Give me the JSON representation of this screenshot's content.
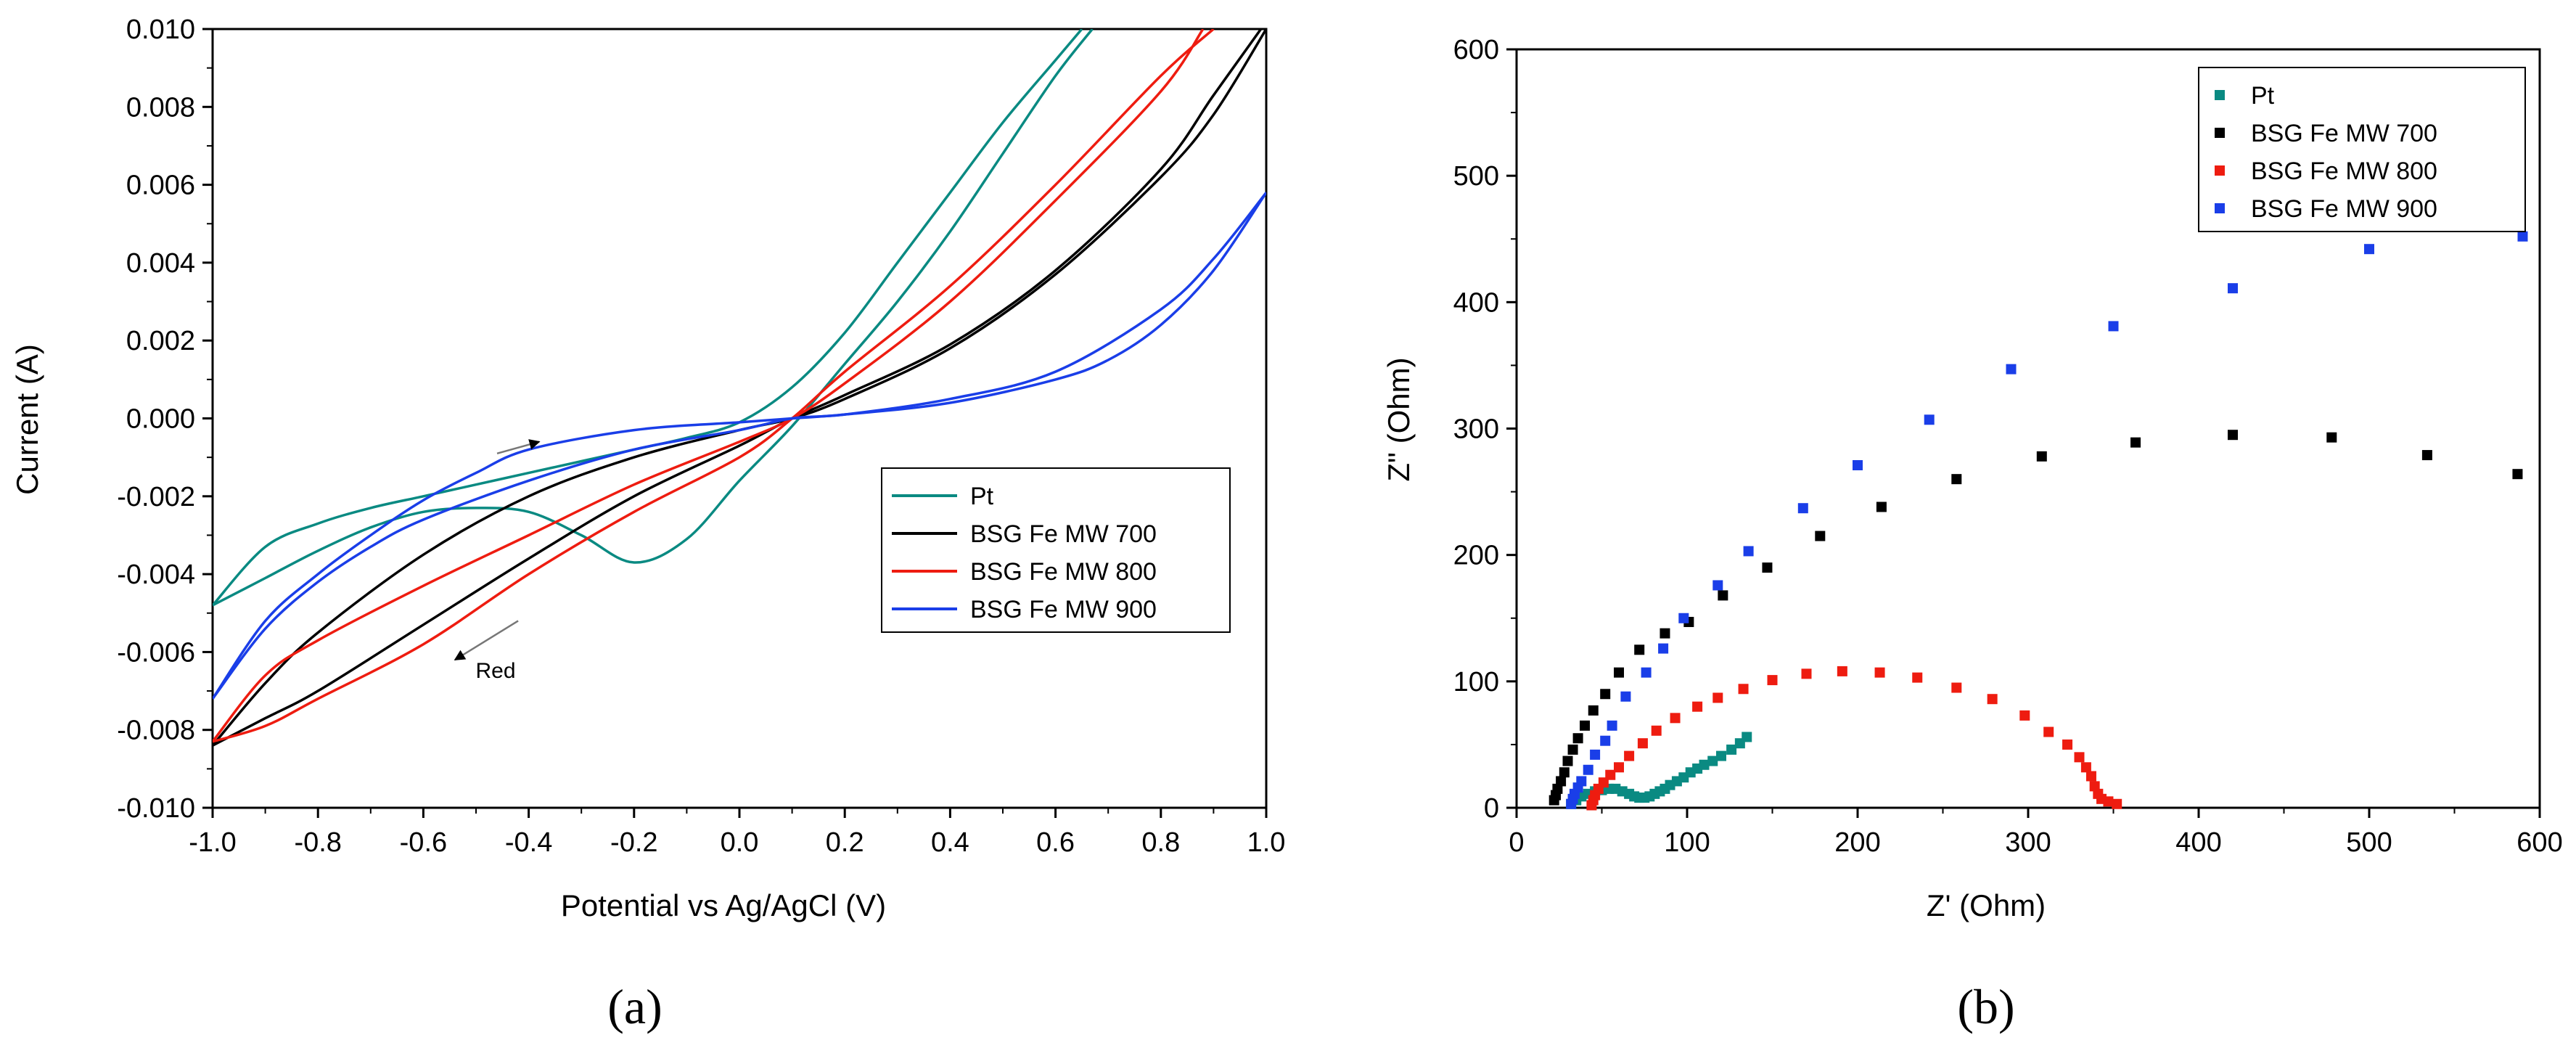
{
  "chart_data": [
    {
      "type": "line",
      "xlabel": "Potential vs Ag/AgCl (V)",
      "ylabel": "Current (A)",
      "xlim": [
        -1.0,
        1.0
      ],
      "ylim": [
        -0.01,
        0.01
      ],
      "x_ticks": [
        "-1.0",
        "-0.8",
        "-0.6",
        "-0.4",
        "-0.2",
        "0.0",
        "0.2",
        "0.4",
        "0.6",
        "0.8",
        "1.0"
      ],
      "y_ticks": [
        "-0.010",
        "-0.008",
        "-0.006",
        "-0.004",
        "-0.002",
        "0.000",
        "0.002",
        "0.004",
        "0.006",
        "0.008",
        "0.010"
      ],
      "legend_position": "center-right",
      "caption": "(a)",
      "annotations": [
        {
          "text": "Red",
          "arrow_from": [
            -0.42,
            -0.0052
          ],
          "arrow_to": [
            -0.54,
            -0.0062
          ],
          "text_at": [
            -0.52,
            -0.0064
          ]
        },
        {
          "text": "",
          "arrow_from": [
            -0.46,
            -0.0009
          ],
          "arrow_to": [
            -0.38,
            -0.0006
          ]
        }
      ],
      "series": [
        {
          "name": "Pt",
          "color": "#0a8a82",
          "segments": [
            [
              [
                -1.0,
                -0.0048
              ],
              [
                -0.9,
                -0.0033
              ],
              [
                -0.8,
                -0.0027
              ],
              [
                -0.7,
                -0.0023
              ],
              [
                -0.6,
                -0.002
              ],
              [
                -0.5,
                -0.0017
              ],
              [
                -0.4,
                -0.0014
              ],
              [
                -0.3,
                -0.0011
              ],
              [
                -0.2,
                -0.0008
              ],
              [
                -0.1,
                -0.0005
              ],
              [
                0.0,
                -0.0001
              ],
              [
                0.1,
                0.0008
              ],
              [
                0.2,
                0.0022
              ],
              [
                0.3,
                0.004
              ],
              [
                0.4,
                0.0058
              ],
              [
                0.5,
                0.0076
              ],
              [
                0.6,
                0.0092
              ],
              [
                0.65,
                0.01
              ]
            ],
            [
              [
                0.67,
                0.01
              ],
              [
                0.6,
                0.0088
              ],
              [
                0.5,
                0.0068
              ],
              [
                0.4,
                0.0048
              ],
              [
                0.3,
                0.003
              ],
              [
                0.2,
                0.0014
              ],
              [
                0.1,
                -0.0002
              ],
              [
                0.0,
                -0.0016
              ],
              [
                -0.1,
                -0.0031
              ],
              [
                -0.2,
                -0.0037
              ],
              [
                -0.3,
                -0.003
              ],
              [
                -0.4,
                -0.0024
              ],
              [
                -0.5,
                -0.0023
              ],
              [
                -0.6,
                -0.0024
              ],
              [
                -0.7,
                -0.0028
              ],
              [
                -0.8,
                -0.0034
              ],
              [
                -0.9,
                -0.0041
              ],
              [
                -1.0,
                -0.0048
              ]
            ]
          ]
        },
        {
          "name": "BSG Fe MW 700",
          "color": "#000000",
          "segments": [
            [
              [
                -1.0,
                -0.0084
              ],
              [
                -0.9,
                -0.0068
              ],
              [
                -0.8,
                -0.0055
              ],
              [
                -0.6,
                -0.0035
              ],
              [
                -0.4,
                -0.002
              ],
              [
                -0.2,
                -0.001
              ],
              [
                0.0,
                -0.0003
              ],
              [
                0.1,
                0.0
              ],
              [
                0.2,
                0.0005
              ],
              [
                0.4,
                0.0018
              ],
              [
                0.6,
                0.0037
              ],
              [
                0.8,
                0.0062
              ],
              [
                0.9,
                0.0078
              ],
              [
                1.0,
                0.01
              ]
            ],
            [
              [
                0.99,
                0.01
              ],
              [
                0.9,
                0.0083
              ],
              [
                0.8,
                0.0064
              ],
              [
                0.6,
                0.0038
              ],
              [
                0.4,
                0.0019
              ],
              [
                0.2,
                0.0006
              ],
              [
                0.1,
                0.0
              ],
              [
                0.0,
                -0.0007
              ],
              [
                -0.2,
                -0.002
              ],
              [
                -0.4,
                -0.0036
              ],
              [
                -0.6,
                -0.0053
              ],
              [
                -0.8,
                -0.007
              ],
              [
                -0.9,
                -0.0077
              ],
              [
                -1.0,
                -0.0084
              ]
            ]
          ]
        },
        {
          "name": "BSG Fe MW 800",
          "color": "#ee1c10",
          "segments": [
            [
              [
                -1.0,
                -0.0083
              ],
              [
                -0.9,
                -0.0066
              ],
              [
                -0.8,
                -0.0057
              ],
              [
                -0.6,
                -0.0043
              ],
              [
                -0.4,
                -0.003
              ],
              [
                -0.2,
                -0.0017
              ],
              [
                0.0,
                -0.0006
              ],
              [
                0.1,
                0.0
              ],
              [
                0.2,
                0.0009
              ],
              [
                0.4,
                0.003
              ],
              [
                0.6,
                0.0056
              ],
              [
                0.8,
                0.0084
              ],
              [
                0.88,
                0.01
              ]
            ],
            [
              [
                0.9,
                0.01
              ],
              [
                0.8,
                0.0088
              ],
              [
                0.6,
                0.006
              ],
              [
                0.4,
                0.0034
              ],
              [
                0.2,
                0.0012
              ],
              [
                0.1,
                0.0
              ],
              [
                0.0,
                -0.001
              ],
              [
                -0.2,
                -0.0024
              ],
              [
                -0.4,
                -0.004
              ],
              [
                -0.6,
                -0.0058
              ],
              [
                -0.8,
                -0.0072
              ],
              [
                -0.9,
                -0.0079
              ],
              [
                -1.0,
                -0.0083
              ]
            ]
          ]
        },
        {
          "name": "BSG Fe MW 900",
          "color": "#1a3ee8",
          "segments": [
            [
              [
                -1.0,
                -0.0072
              ],
              [
                -0.9,
                -0.0052
              ],
              [
                -0.8,
                -0.004
              ],
              [
                -0.7,
                -0.003
              ],
              [
                -0.6,
                -0.0021
              ],
              [
                -0.5,
                -0.0014
              ],
              [
                -0.4,
                -0.0008
              ],
              [
                -0.2,
                -0.0003
              ],
              [
                0.0,
                -0.0001
              ],
              [
                0.1,
                0.0
              ],
              [
                0.2,
                0.0001
              ],
              [
                0.4,
                0.0004
              ],
              [
                0.6,
                0.001
              ],
              [
                0.7,
                0.0015
              ],
              [
                0.8,
                0.0024
              ],
              [
                0.9,
                0.0038
              ],
              [
                1.0,
                0.0058
              ]
            ],
            [
              [
                1.0,
                0.0058
              ],
              [
                0.9,
                0.0041
              ],
              [
                0.8,
                0.0028
              ],
              [
                0.6,
                0.0012
              ],
              [
                0.4,
                0.0005
              ],
              [
                0.2,
                0.0001
              ],
              [
                0.1,
                0.0
              ],
              [
                0.0,
                -0.0003
              ],
              [
                -0.2,
                -0.0008
              ],
              [
                -0.4,
                -0.0016
              ],
              [
                -0.6,
                -0.0026
              ],
              [
                -0.7,
                -0.0033
              ],
              [
                -0.8,
                -0.0042
              ],
              [
                -0.9,
                -0.0054
              ],
              [
                -1.0,
                -0.0072
              ]
            ]
          ]
        }
      ]
    },
    {
      "type": "scatter",
      "xlabel": "Z' (Ohm)",
      "ylabel": "Z\" (Ohm)",
      "xlim": [
        0,
        600
      ],
      "ylim": [
        0,
        600
      ],
      "x_ticks": [
        "0",
        "100",
        "200",
        "300",
        "400",
        "500",
        "600"
      ],
      "y_ticks": [
        "0",
        "100",
        "200",
        "300",
        "400",
        "500",
        "600"
      ],
      "legend_position": "top-right",
      "caption": "(b)",
      "series": [
        {
          "name": "Pt",
          "color": "#0a8a82",
          "points": [
            [
              32,
              3
            ],
            [
              35,
              6
            ],
            [
              38,
              9
            ],
            [
              42,
              11
            ],
            [
              46,
              13
            ],
            [
              50,
              14
            ],
            [
              54,
              15
            ],
            [
              58,
              15
            ],
            [
              62,
              13
            ],
            [
              66,
              11
            ],
            [
              69,
              9
            ],
            [
              72,
              8
            ],
            [
              75,
              8
            ],
            [
              78,
              9
            ],
            [
              81,
              11
            ],
            [
              84,
              13
            ],
            [
              87,
              15
            ],
            [
              90,
              18
            ],
            [
              94,
              21
            ],
            [
              98,
              24
            ],
            [
              102,
              28
            ],
            [
              106,
              31
            ],
            [
              110,
              34
            ],
            [
              115,
              37
            ],
            [
              120,
              41
            ],
            [
              126,
              46
            ],
            [
              131,
              51
            ],
            [
              135,
              56
            ]
          ]
        },
        {
          "name": "BSG Fe MW 700",
          "color": "#000000",
          "points": [
            [
              22,
              6
            ],
            [
              23,
              10
            ],
            [
              24,
              15
            ],
            [
              26,
              21
            ],
            [
              28,
              28
            ],
            [
              30,
              37
            ],
            [
              33,
              46
            ],
            [
              36,
              55
            ],
            [
              40,
              65
            ],
            [
              45,
              77
            ],
            [
              52,
              90
            ],
            [
              60,
              107
            ],
            [
              72,
              125
            ],
            [
              87,
              138
            ],
            [
              101,
              147
            ],
            [
              121,
              168
            ],
            [
              147,
              190
            ],
            [
              178,
              215
            ],
            [
              214,
              238
            ],
            [
              258,
              260
            ],
            [
              308,
              278
            ],
            [
              363,
              289
            ],
            [
              420,
              295
            ],
            [
              478,
              293
            ],
            [
              534,
              279
            ],
            [
              587,
              264
            ]
          ]
        },
        {
          "name": "BSG Fe MW 800",
          "color": "#ee1c10",
          "points": [
            [
              44,
              2
            ],
            [
              45,
              6
            ],
            [
              46,
              10
            ],
            [
              48,
              15
            ],
            [
              51,
              20
            ],
            [
              55,
              26
            ],
            [
              60,
              32
            ],
            [
              66,
              41
            ],
            [
              74,
              51
            ],
            [
              82,
              61
            ],
            [
              93,
              71
            ],
            [
              106,
              80
            ],
            [
              118,
              87
            ],
            [
              133,
              94
            ],
            [
              150,
              101
            ],
            [
              170,
              106
            ],
            [
              191,
              108
            ],
            [
              213,
              107
            ],
            [
              235,
              103
            ],
            [
              258,
              95
            ],
            [
              279,
              86
            ],
            [
              298,
              73
            ],
            [
              312,
              60
            ],
            [
              323,
              50
            ],
            [
              330,
              40
            ],
            [
              334,
              32
            ],
            [
              337,
              25
            ],
            [
              339,
              17
            ],
            [
              341,
              11
            ],
            [
              343,
              7
            ],
            [
              347,
              5
            ],
            [
              352,
              3
            ]
          ]
        },
        {
          "name": "BSG Fe MW 900",
          "color": "#1a3ee8",
          "points": [
            [
              32,
              3
            ],
            [
              33,
              7
            ],
            [
              34,
              11
            ],
            [
              36,
              16
            ],
            [
              38,
              21
            ],
            [
              42,
              30
            ],
            [
              46,
              42
            ],
            [
              52,
              53
            ],
            [
              56,
              65
            ],
            [
              64,
              88
            ],
            [
              76,
              107
            ],
            [
              86,
              126
            ],
            [
              98,
              150
            ],
            [
              118,
              176
            ],
            [
              136,
              203
            ],
            [
              168,
              237
            ],
            [
              200,
              271
            ],
            [
              242,
              307
            ],
            [
              290,
              347
            ],
            [
              350,
              381
            ],
            [
              420,
              411
            ],
            [
              500,
              442
            ],
            [
              590,
              452
            ]
          ]
        }
      ]
    }
  ]
}
